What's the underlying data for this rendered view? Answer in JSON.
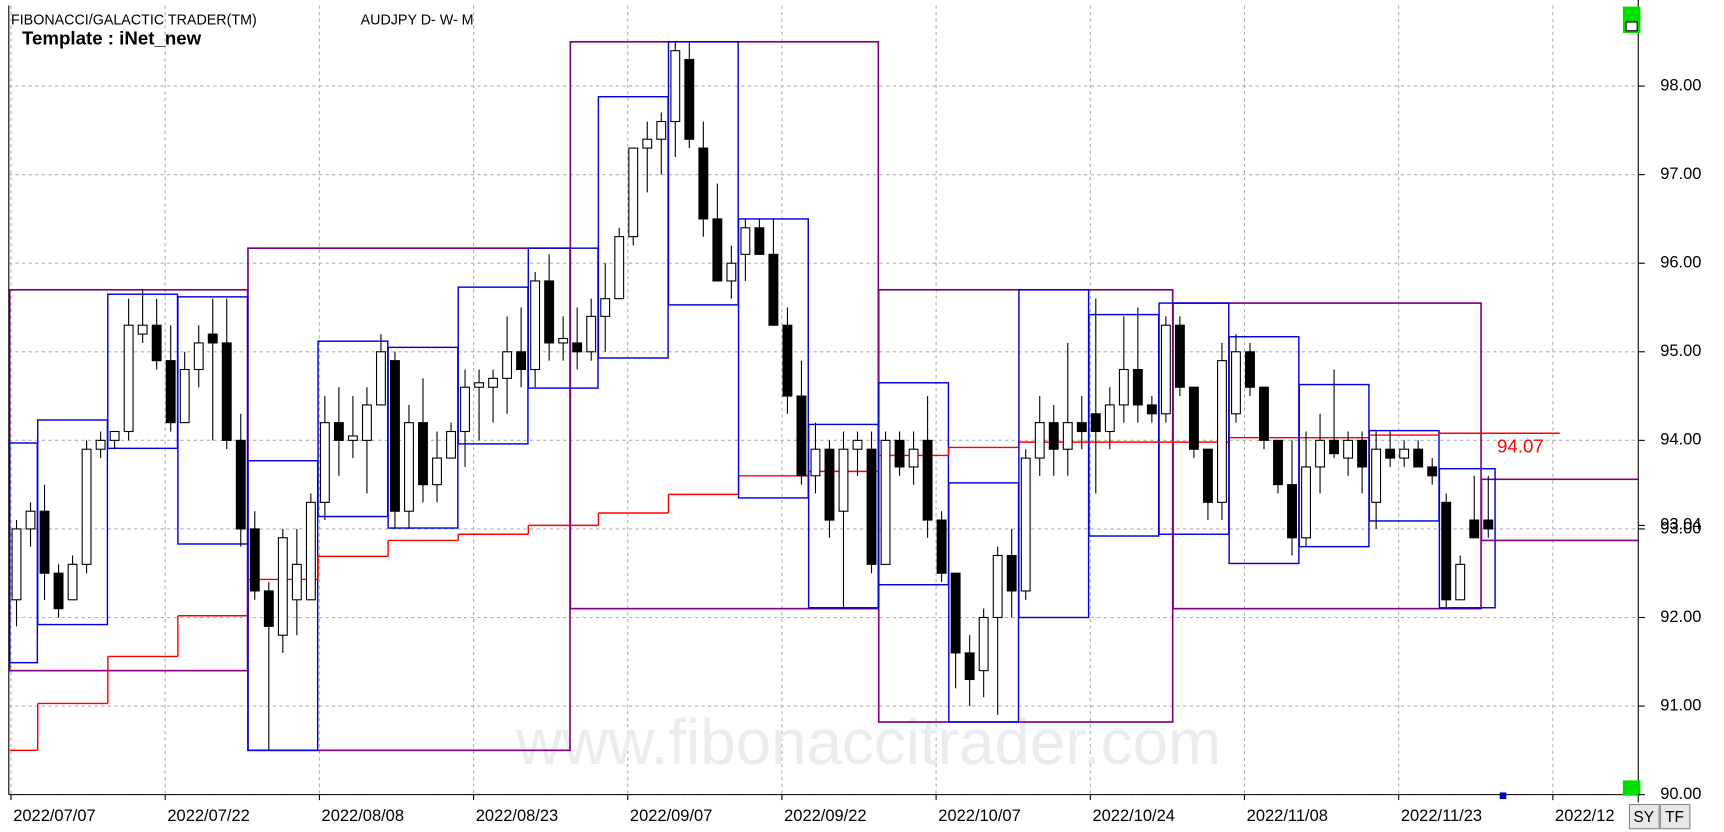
{
  "chart_data": {
    "type": "candlestick",
    "title": "FIBONACCI/GALACTIC TRADER(TM)",
    "symbol": "AUDJPY D- W- M",
    "template": "Template : iNet_new",
    "watermark": "www.fibonaccitrader.com",
    "buttons": [
      "SY",
      "TF"
    ],
    "open": [
      92.2,
      93.0,
      93.2,
      92.5,
      92.2,
      92.6,
      93.9,
      94.0,
      94.1,
      95.2,
      95.3,
      94.9,
      94.2,
      94.8,
      95.2,
      95.1,
      94.0,
      93.0,
      92.3,
      91.8,
      92.2,
      92.2,
      93.3,
      94.2,
      94.0,
      94.0,
      94.4,
      94.9,
      93.2,
      94.2,
      93.5,
      93.8,
      94.1,
      94.6,
      94.6,
      94.7,
      95.0,
      94.8,
      95.8,
      95.1,
      95.1,
      95.0,
      95.4,
      95.6,
      96.3,
      97.3,
      97.4,
      97.6,
      98.3,
      97.3,
      96.5,
      95.8,
      96.1,
      96.4,
      96.1,
      95.3,
      94.5,
      93.6,
      93.9,
      93.2,
      93.9,
      93.9,
      92.6,
      94.0,
      93.7,
      94.0,
      93.1,
      92.5,
      91.6,
      91.4,
      92.0,
      92.7,
      92.3,
      93.8,
      94.2,
      93.9,
      94.2,
      94.3,
      94.1,
      94.4,
      94.8,
      94.4,
      94.3,
      95.3,
      94.6,
      93.9,
      93.3,
      94.3,
      95.0,
      94.6,
      94.0,
      93.5,
      92.9,
      93.7,
      94.0,
      93.8,
      94.0,
      93.3,
      93.9,
      93.8,
      93.9,
      93.7,
      93.3,
      92.2,
      93.1,
      93.1
    ],
    "high": [
      93.1,
      93.3,
      93.5,
      92.6,
      92.7,
      94.0,
      94.1,
      94.1,
      95.6,
      95.7,
      95.6,
      95.3,
      95.0,
      95.3,
      95.6,
      95.6,
      94.3,
      93.2,
      92.4,
      93.0,
      93.0,
      93.4,
      94.5,
      94.6,
      94.5,
      94.6,
      95.2,
      95.0,
      94.4,
      94.7,
      94.1,
      94.2,
      94.8,
      94.8,
      94.8,
      95.4,
      95.5,
      95.9,
      96.1,
      95.4,
      95.5,
      95.6,
      96.0,
      96.4,
      97.3,
      97.6,
      97.7,
      98.5,
      98.5,
      97.6,
      96.9,
      96.2,
      96.5,
      96.5,
      96.5,
      95.5,
      94.9,
      94.2,
      94.0,
      94.1,
      94.1,
      94.1,
      94.1,
      94.1,
      94.1,
      94.5,
      93.2,
      92.5,
      91.8,
      92.1,
      92.8,
      93.0,
      93.9,
      94.5,
      94.4,
      95.1,
      94.5,
      95.6,
      94.6,
      95.4,
      95.5,
      94.5,
      95.4,
      95.4,
      94.6,
      93.9,
      95.1,
      95.2,
      95.1,
      94.6,
      94.0,
      94.0,
      94.1,
      94.3,
      94.8,
      94.1,
      94.1,
      94.1,
      94.1,
      94.0,
      94.0,
      93.8,
      93.4,
      92.7,
      93.6,
      93.6
    ],
    "low": [
      91.9,
      92.8,
      92.2,
      92.0,
      92.2,
      92.5,
      93.8,
      93.9,
      94.0,
      95.1,
      94.8,
      94.1,
      94.2,
      94.6,
      94.0,
      93.9,
      92.8,
      92.2,
      90.5,
      91.6,
      91.8,
      92.2,
      93.1,
      93.6,
      93.8,
      93.4,
      94.4,
      93.0,
      93.0,
      93.3,
      93.3,
      93.8,
      93.7,
      94.0,
      94.2,
      94.3,
      94.6,
      94.6,
      94.9,
      94.9,
      94.8,
      94.9,
      95.0,
      95.6,
      96.2,
      96.8,
      97.0,
      97.2,
      97.3,
      96.3,
      95.8,
      95.6,
      95.8,
      96.1,
      95.3,
      94.3,
      93.5,
      93.4,
      92.9,
      92.1,
      93.6,
      92.5,
      92.6,
      93.6,
      93.5,
      92.9,
      92.4,
      91.2,
      91.0,
      91.1,
      90.9,
      92.0,
      92.2,
      93.6,
      93.6,
      93.6,
      93.9,
      93.4,
      93.9,
      94.2,
      94.2,
      94.2,
      94.2,
      94.5,
      93.8,
      93.1,
      93.1,
      94.2,
      94.5,
      93.9,
      93.4,
      92.7,
      92.8,
      93.4,
      93.8,
      93.6,
      93.4,
      93.0,
      93.7,
      93.7,
      93.7,
      93.5,
      92.1,
      92.2,
      92.9,
      92.9
    ],
    "close": [
      93.0,
      93.2,
      92.5,
      92.1,
      92.6,
      93.9,
      94.0,
      94.1,
      95.3,
      95.3,
      94.9,
      94.2,
      94.8,
      95.1,
      95.1,
      94.0,
      93.0,
      92.3,
      91.9,
      92.9,
      92.6,
      93.3,
      94.2,
      94.0,
      94.05,
      94.4,
      95.0,
      93.2,
      94.2,
      93.5,
      93.8,
      94.1,
      94.6,
      94.65,
      94.7,
      95.0,
      94.8,
      95.8,
      95.1,
      95.15,
      95.0,
      95.4,
      95.6,
      96.3,
      97.3,
      97.4,
      97.6,
      98.4,
      97.4,
      96.5,
      95.8,
      96.0,
      96.4,
      96.1,
      95.3,
      94.5,
      93.6,
      93.9,
      93.1,
      93.9,
      94.0,
      92.6,
      94.0,
      93.7,
      93.9,
      93.1,
      92.5,
      91.6,
      91.3,
      92.0,
      92.7,
      92.3,
      93.8,
      94.2,
      93.9,
      94.2,
      94.1,
      94.1,
      94.4,
      94.8,
      94.4,
      94.3,
      95.3,
      94.6,
      93.9,
      93.3,
      94.9,
      95.0,
      94.6,
      94.0,
      93.5,
      92.9,
      93.7,
      94.0,
      93.85,
      94.0,
      93.7,
      93.9,
      93.8,
      93.9,
      93.7,
      93.6,
      92.2,
      92.6,
      92.9,
      93.0
    ],
    "weekly_boxes": [
      {
        "from": 0,
        "to": 1,
        "high": 93.97,
        "low": 91.49,
        "ma": 90.5
      },
      {
        "from": 2,
        "to": 6,
        "high": 94.23,
        "low": 91.92,
        "ma": 91.03
      },
      {
        "from": 7,
        "to": 11,
        "high": 95.65,
        "low": 93.91,
        "ma": 91.56
      },
      {
        "from": 12,
        "to": 16,
        "high": 95.62,
        "low": 92.83,
        "ma": 92.02
      },
      {
        "from": 17,
        "to": 21,
        "high": 93.77,
        "low": 90.5,
        "ma": 92.43
      },
      {
        "from": 22,
        "to": 26,
        "high": 95.12,
        "low": 93.14,
        "ma": 92.69
      },
      {
        "from": 27,
        "to": 31,
        "high": 95.05,
        "low": 93.01,
        "ma": 92.87
      },
      {
        "from": 32,
        "to": 36,
        "high": 95.73,
        "low": 93.96,
        "ma": 92.94
      },
      {
        "from": 37,
        "to": 41,
        "high": 96.17,
        "low": 94.59,
        "ma": 93.04
      },
      {
        "from": 42,
        "to": 46,
        "high": 97.88,
        "low": 94.93,
        "ma": 93.18
      },
      {
        "from": 47,
        "to": 51,
        "high": 98.5,
        "low": 95.53,
        "ma": 93.39
      },
      {
        "from": 52,
        "to": 56,
        "high": 96.5,
        "low": 93.35,
        "ma": 93.6
      },
      {
        "from": 57,
        "to": 61,
        "high": 94.18,
        "low": 92.11,
        "ma": 93.65
      },
      {
        "from": 62,
        "to": 66,
        "high": 94.65,
        "low": 92.37,
        "ma": 93.83
      },
      {
        "from": 67,
        "to": 71,
        "high": 93.52,
        "low": 90.82,
        "ma": 93.92
      },
      {
        "from": 72,
        "to": 76,
        "high": 95.7,
        "low": 92.0,
        "ma": 93.98
      },
      {
        "from": 77,
        "to": 81,
        "high": 95.42,
        "low": 92.92,
        "ma": 93.98
      },
      {
        "from": 82,
        "to": 86,
        "high": 95.55,
        "low": 92.94,
        "ma": 93.98
      },
      {
        "from": 87,
        "to": 91,
        "high": 95.17,
        "low": 92.61,
        "ma": 94.03
      },
      {
        "from": 92,
        "to": 96,
        "high": 94.63,
        "low": 92.8,
        "ma": 94.03
      },
      {
        "from": 97,
        "to": 101,
        "high": 94.11,
        "low": 93.09,
        "ma": 94.06
      },
      {
        "from": 102,
        "to": 105,
        "high": 93.68,
        "low": 92.11,
        "ma": 94.08
      }
    ],
    "monthly_boxes": [
      {
        "from": 0,
        "to": 16,
        "high": 95.7,
        "low": 91.4
      },
      {
        "from": 17,
        "to": 39,
        "high": 96.17,
        "low": 90.5
      },
      {
        "from": 40,
        "to": 61,
        "high": 98.5,
        "low": 92.1
      },
      {
        "from": 62,
        "to": 82,
        "high": 95.7,
        "low": 90.82
      },
      {
        "from": 83,
        "to": 104,
        "high": 95.55,
        "low": 92.1
      }
    ],
    "current_month": {
      "from": 105,
      "high": 93.56,
      "low": 92.87
    },
    "ma_label": 94.07,
    "last_price": 93.04,
    "xlim": [
      -0.55,
      115.7
    ],
    "ylim": [
      90,
      98.91
    ],
    "xticks": [
      {
        "value": 0,
        "label": "2022/07/07"
      },
      {
        "value": 11,
        "label": "2022/07/22"
      },
      {
        "value": 22,
        "label": "2022/08/08"
      },
      {
        "value": 33,
        "label": "2022/08/23"
      },
      {
        "value": 44,
        "label": "2022/09/07"
      },
      {
        "value": 55,
        "label": "2022/09/22"
      },
      {
        "value": 66,
        "label": "2022/10/07"
      },
      {
        "value": 77,
        "label": "2022/10/24"
      },
      {
        "value": 88,
        "label": "2022/11/08"
      },
      {
        "value": 99,
        "label": "2022/11/23"
      },
      {
        "value": 110,
        "label": "2022/12"
      }
    ],
    "yticks": [
      {
        "value": 90,
        "label": "90.00"
      },
      {
        "value": 91,
        "label": "91.00"
      },
      {
        "value": 92,
        "label": "92.00"
      },
      {
        "value": 93,
        "label": "93.00"
      },
      {
        "value": 94,
        "label": "94.00"
      },
      {
        "value": 95,
        "label": "95.00"
      },
      {
        "value": 96,
        "label": "96.00"
      },
      {
        "value": 97,
        "label": "97.00"
      },
      {
        "value": 98,
        "label": "98.00"
      }
    ],
    "grid": true
  }
}
